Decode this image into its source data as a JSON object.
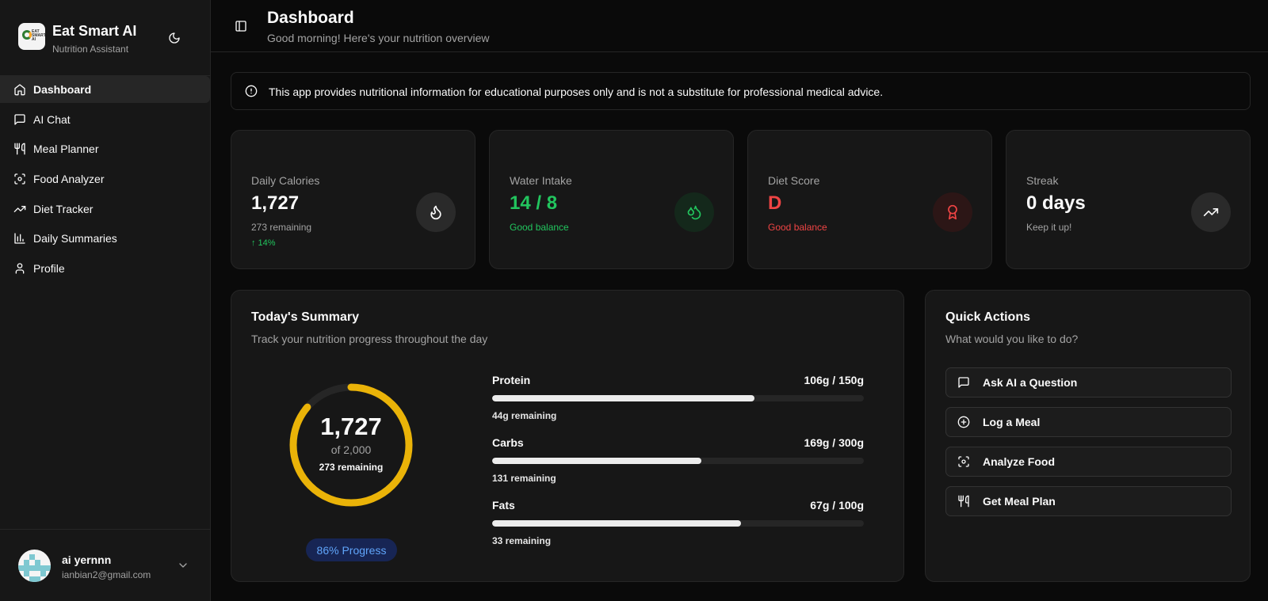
{
  "brand": {
    "title": "Eat Smart AI",
    "subtitle": "Nutrition Assistant",
    "logo_text": "EAT SMART AI"
  },
  "sidebar": {
    "items": [
      {
        "label": "Dashboard",
        "icon": "home-icon",
        "active": true
      },
      {
        "label": "AI Chat",
        "icon": "message-icon"
      },
      {
        "label": "Meal Planner",
        "icon": "utensils-icon"
      },
      {
        "label": "Food Analyzer",
        "icon": "scan-icon"
      },
      {
        "label": "Diet Tracker",
        "icon": "trending-up-icon"
      },
      {
        "label": "Daily Summaries",
        "icon": "bar-chart-icon"
      },
      {
        "label": "Profile",
        "icon": "user-icon"
      }
    ]
  },
  "user": {
    "name": "ai yernnn",
    "email": "ianbian2@gmail.com"
  },
  "header": {
    "title": "Dashboard",
    "subtitle": "Good morning! Here's your nutrition overview"
  },
  "disclaimer": "This app provides nutritional information for educational purposes only and is not a substitute for professional medical advice.",
  "stats": {
    "calories": {
      "label": "Daily Calories",
      "value": "1,727",
      "note": "273 remaining",
      "trend": "↑ 14%"
    },
    "water": {
      "label": "Water Intake",
      "value": "14 / 8",
      "note": "Good balance"
    },
    "score": {
      "label": "Diet Score",
      "value": "D",
      "note": "Good balance"
    },
    "streak": {
      "label": "Streak",
      "value": "0 days",
      "note": "Keep it up!"
    }
  },
  "summary": {
    "title": "Today's Summary",
    "subtitle": "Track your nutrition progress throughout the day",
    "ring": {
      "value": "1,727",
      "of": "of 2,000",
      "remaining": "273 remaining",
      "fraction": 0.8635
    },
    "progress_label": "86% Progress",
    "macros": [
      {
        "name": "Protein",
        "amount": "106g / 150g",
        "remaining": "44g remaining",
        "fraction": 0.7067
      },
      {
        "name": "Carbs",
        "amount": "169g / 300g",
        "remaining": "131 remaining",
        "fraction": 0.5633
      },
      {
        "name": "Fats",
        "amount": "67g / 100g",
        "remaining": "33 remaining",
        "fraction": 0.67
      }
    ]
  },
  "quick_actions": {
    "title": "Quick Actions",
    "subtitle": "What would you like to do?",
    "items": [
      {
        "label": "Ask AI a Question",
        "icon": "message-icon"
      },
      {
        "label": "Log a Meal",
        "icon": "plus-circle-icon"
      },
      {
        "label": "Analyze Food",
        "icon": "scan-icon"
      },
      {
        "label": "Get Meal Plan",
        "icon": "utensils-icon"
      }
    ]
  },
  "colors": {
    "ring": "#eab308",
    "water": "#22c55e",
    "score": "#ef4444",
    "progress_text": "#60a5fa"
  }
}
